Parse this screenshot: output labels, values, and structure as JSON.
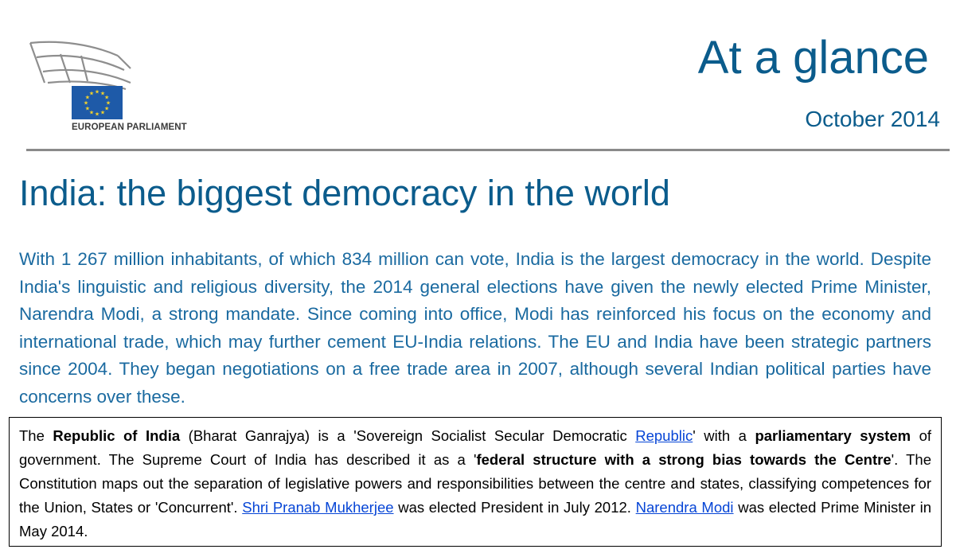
{
  "header": {
    "organization": "EUROPEAN PARLIAMENT",
    "series": "At a glance",
    "date": "October 2014",
    "colors": {
      "accent": "#0b5c8c",
      "flag": "#1e5aa8",
      "stars": "#f5d32a",
      "rule": "#8a8a8a"
    },
    "logo_icon": "parliament-hemicycle-icon",
    "flag_icon": "eu-flag-icon"
  },
  "title": "India: the biggest democracy in the world",
  "lead": "With 1 267 million inhabitants, of which 834 million can vote, India is the largest democracy in the world. Despite India's linguistic and religious diversity, the 2014 general elections have given the newly elected Prime Minister, Narendra Modi, a strong mandate. Since coming into office, Modi has reinforced his focus on the economy and international trade, which may further cement EU-India relations. The EU and India have been strategic partners since 2004. They began negotiations on a free trade area in 2007, although several Indian political parties have concerns over these.",
  "box": {
    "t1": "The ",
    "b1": "Republic of India",
    "t2": " (Bharat Ganrajya) is a 'Sovereign Socialist Secular Democratic ",
    "link1": "Republic",
    "t3": "' with a ",
    "b2": "parliamentary system",
    "t4": " of government. The Supreme Court of India has described it as a '",
    "b3": "federal structure with a strong bias towards the Centre",
    "t5": "'. The Constitution maps out the separation of legislative powers and responsibilities between the centre and states, classifying competences for the Union, States or 'Concurrent'. ",
    "link2": "Shri Pranab Mukherjee",
    "t6": " was elected President in July 2012. ",
    "link3": "Narendra Modi",
    "t7": " was elected Prime Minister in May 2014."
  }
}
